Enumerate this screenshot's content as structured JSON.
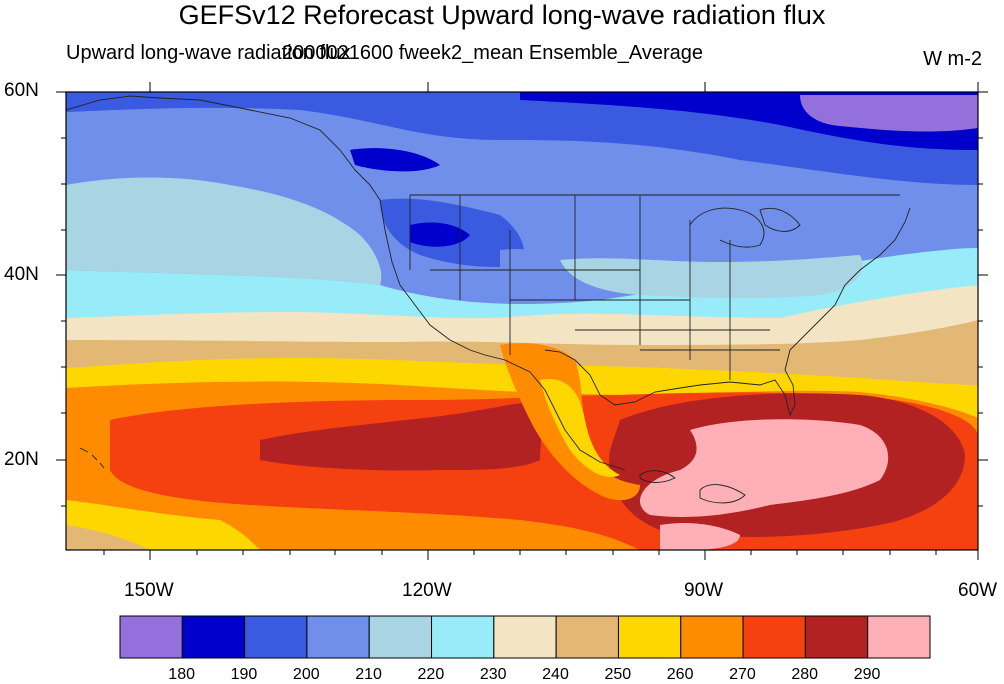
{
  "title": "GEFSv12 Reforecast Upward long-wave radiation flux",
  "subtitle_left": "Upward long-wave radiation flux",
  "subtitle_right": "2000021600 fweek2_mean Ensemble_Average",
  "units": "W m-2",
  "lat_labels": [
    "60N",
    "40N",
    "20N"
  ],
  "lon_labels": [
    "150W",
    "120W",
    "90W",
    "60W"
  ],
  "colorbar": {
    "levels": [
      "180",
      "190",
      "200",
      "210",
      "220",
      "230",
      "240",
      "250",
      "260",
      "270",
      "280",
      "290"
    ],
    "colors": [
      "#9370DB",
      "#0000CD",
      "#3A5BE0",
      "#6F8FEA",
      "#A8D4E4",
      "#98EBF8",
      "#F3E4C4",
      "#E2B874",
      "#FFD700",
      "#FF8C00",
      "#F54010",
      "#B22222",
      "#FFB0B6"
    ]
  }
}
